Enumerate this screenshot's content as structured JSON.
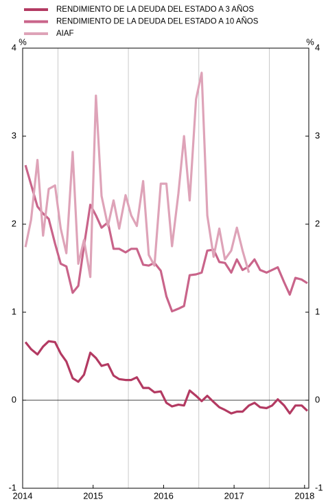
{
  "chart_data": {
    "type": "line",
    "y_unit_left": "%",
    "y_unit_right": "%",
    "x": [
      2014.04,
      2014.12,
      2014.21,
      2014.29,
      2014.37,
      2014.46,
      2014.54,
      2014.62,
      2014.71,
      2014.79,
      2014.87,
      2014.96,
      2015.04,
      2015.12,
      2015.21,
      2015.29,
      2015.37,
      2015.46,
      2015.54,
      2015.62,
      2015.71,
      2015.79,
      2015.87,
      2015.96,
      2016.04,
      2016.12,
      2016.21,
      2016.29,
      2016.37,
      2016.46,
      2016.54,
      2016.62,
      2016.71,
      2016.79,
      2016.87,
      2016.96,
      2017.04,
      2017.12,
      2017.21,
      2017.29,
      2017.37,
      2017.46,
      2017.54,
      2017.62,
      2017.71,
      2017.79,
      2017.87,
      2017.96,
      2018.04
    ],
    "series": [
      {
        "name": "RENDIMIENTO DE LA DEUDA DEL ESTADO A 3 AÑOS",
        "color": "#b33a62",
        "values": [
          0.66,
          0.58,
          0.52,
          0.61,
          0.67,
          0.66,
          0.53,
          0.44,
          0.25,
          0.21,
          0.29,
          0.54,
          0.48,
          0.39,
          0.41,
          0.28,
          0.24,
          0.23,
          0.23,
          0.26,
          0.14,
          0.14,
          0.09,
          0.1,
          -0.03,
          -0.07,
          -0.05,
          -0.06,
          0.11,
          0.05,
          -0.01,
          0.05,
          -0.02,
          -0.08,
          -0.11,
          -0.15,
          -0.13,
          -0.13,
          -0.06,
          -0.03,
          -0.08,
          -0.09,
          -0.06,
          0.01,
          -0.06,
          -0.15,
          -0.06,
          -0.06,
          -0.12
        ]
      },
      {
        "name": "RENDIMIENTO DE LA DEUDA DEL ESTADO A 10 AÑOS",
        "color": "#c9648a",
        "values": [
          2.67,
          2.45,
          2.2,
          2.12,
          2.06,
          1.78,
          1.55,
          1.52,
          1.22,
          1.3,
          1.75,
          2.22,
          2.1,
          1.96,
          2.02,
          1.72,
          1.72,
          1.68,
          1.72,
          1.72,
          1.54,
          1.53,
          1.56,
          1.47,
          1.18,
          1.01,
          1.04,
          1.07,
          1.42,
          1.43,
          1.45,
          1.7,
          1.71,
          1.57,
          1.56,
          1.45,
          1.6,
          1.48,
          1.52,
          1.6,
          1.48,
          1.45,
          1.48,
          1.51,
          1.34,
          1.2,
          1.39,
          1.37,
          1.33
        ]
      },
      {
        "name": "AIAF",
        "color": "#dea3b8",
        "values": [
          1.74,
          2.05,
          2.73,
          1.87,
          2.4,
          2.44,
          1.95,
          1.67,
          2.82,
          1.55,
          1.82,
          1.4,
          3.46,
          2.32,
          1.98,
          2.27,
          1.95,
          2.33,
          2.1,
          1.98,
          2.49,
          1.65,
          1.53,
          2.46,
          2.46,
          1.75,
          2.35,
          3.0,
          2.27,
          3.42,
          3.72,
          2.1,
          1.63,
          1.95,
          1.6,
          1.7,
          1.96,
          1.7,
          1.45,
          null,
          null,
          null,
          null,
          null,
          null,
          null,
          null,
          null,
          null
        ]
      }
    ],
    "xlim": [
      2014,
      2018.06
    ],
    "xticks": [
      2014,
      2015,
      2016,
      2017,
      2018
    ],
    "xgrid": [
      2014.5,
      2015.5,
      2016.5,
      2017.5
    ],
    "ylim": [
      -1,
      4
    ],
    "yticks": [
      -1,
      0,
      1,
      2,
      3,
      4
    ]
  }
}
